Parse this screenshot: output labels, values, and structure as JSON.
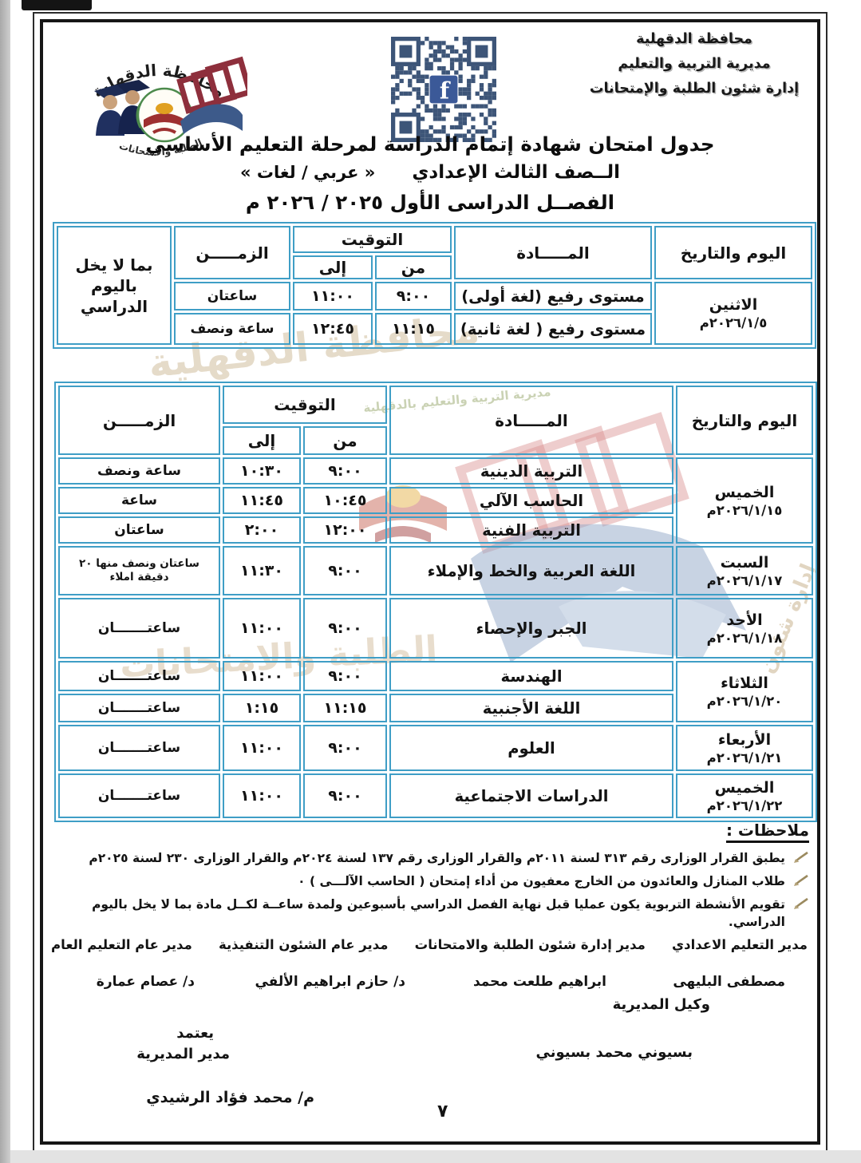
{
  "colors": {
    "table_border": "#3f9ec6",
    "qr_module": "#3d5578",
    "facebook_blue": "#3b5998"
  },
  "gov_header": {
    "line1": "محافظة الدقهلية",
    "line2": "مديرية التربية والتعليم",
    "line3": "إدارة شئون الطلبة والإمتحانات"
  },
  "logo": {
    "arc_top": "محافظة الدقهلية",
    "arc_bottom": "الطلبة والامتحانات",
    "arc_side": "إدارة شئون"
  },
  "titles": {
    "main": "جدول امتحان شهادة إتمام الدراسة لمرحلة التعليم الأساسي",
    "grade": "الــصف الثالث الإعدادي",
    "track": "« عربي / لغات »",
    "term": "الفصــل الدراسى الأول ٢٠٢٥ / ٢٠٢٦ م"
  },
  "headers": {
    "day": "اليوم والتاريخ",
    "subject": "المـــــادة",
    "timing": "التوقيت",
    "from": "من",
    "to": "إلى",
    "duration": "الزمـــــن",
    "side_note_line1": "بما لا يخل",
    "side_note_line2": "باليوم الدراسي"
  },
  "table1": {
    "day": {
      "name": "الاثنين",
      "date": "٢٠٢٦/١/٥م"
    },
    "rows": [
      {
        "subject": "مستوى رفيع (لغة أولى)",
        "from": "٩:٠٠",
        "to": "١١:٠٠",
        "duration": "ساعتان"
      },
      {
        "subject": "مستوى رفيع ( لغة ثانية)",
        "from": "١١:١٥",
        "to": "١٢:٤٥",
        "duration": "ساعة ونصف"
      }
    ]
  },
  "table2": {
    "groups": [
      {
        "day": "الخميس",
        "date": "٢٠٢٦/١/١٥م",
        "rows": [
          {
            "subject": "التربية الدينية",
            "from": "٩:٠٠",
            "to": "١٠:٣٠",
            "duration": "ساعة ونصف"
          },
          {
            "subject": "الحاسب الآلي",
            "from": "١٠:٤٥",
            "to": "١١:٤٥",
            "duration": "ساعة"
          },
          {
            "subject": "التربية الفنية",
            "from": "١٢:٠٠",
            "to": "٢:٠٠",
            "duration": "ساعتان"
          }
        ]
      },
      {
        "day": "السبت",
        "date": "٢٠٢٦/١/١٧م",
        "rows": [
          {
            "subject": "اللغة العربية والخط والإملاء",
            "from": "٩:٠٠",
            "to": "١١:٣٠",
            "duration": "ساعتان ونصف منها ٢٠ دقيقة املاء"
          }
        ]
      },
      {
        "day": "الأحد",
        "date": "٢٠٢٦/١/١٨م",
        "rows": [
          {
            "subject": "الجبر والإحصاء",
            "from": "٩:٠٠",
            "to": "١١:٠٠",
            "duration": "ساعتـــــــان"
          }
        ]
      },
      {
        "day": "الثلاثاء",
        "date": "٢٠٢٦/١/٢٠م",
        "rows": [
          {
            "subject": "الهندسة",
            "from": "٩:٠٠",
            "to": "١١:٠٠",
            "duration": "ساعتـــــــان"
          },
          {
            "subject": "اللغة الأجنبية",
            "from": "١١:١٥",
            "to": "١:١٥",
            "duration": "ساعتـــــــان"
          }
        ]
      },
      {
        "day": "الأربعاء",
        "date": "٢٠٢٦/١/٢١م",
        "rows": [
          {
            "subject": "العلوم",
            "from": "٩:٠٠",
            "to": "١١:٠٠",
            "duration": "ساعتـــــــان"
          }
        ]
      },
      {
        "day": "الخميس",
        "date": "٢٠٢٦/١/٢٢م",
        "rows": [
          {
            "subject": "الدراسات الاجتماعية",
            "from": "٩:٠٠",
            "to": "١١:٠٠",
            "duration": "ساعتـــــــان"
          }
        ]
      }
    ]
  },
  "notes": {
    "title": "ملاحظات :",
    "items": [
      "يطبق القرار الوزارى  رقم ٣١٣ لسنة ٢٠١١م  والقرار الوزارى رقم ١٣٧ لسنة ٢٠٢٤م والقرار الوزارى ٢٣٠ لسنة ٢٠٢٥م",
      "طلاب المنازل والعائدون من الخارج معفيون من أداء إمتحان ( الحاسب الآلـــى ) ٠",
      "تقويم الأنشطة التربوية يكون عمليا قبل نهاية الفصل الدراسي بأسبوعين  ولمدة ساعــة لكــل مادة بما لا يخل باليوم الدراسي."
    ]
  },
  "signatures": {
    "titles": [
      "مدير التعليم الاعدادي",
      "مدير إدارة شئون الطلبة والامتحانات",
      "مدير عام الشئون التنفيذية",
      "مدير عام التعليم العام"
    ],
    "names": [
      "مصطفى البليهى",
      "ابراهيم طلعت محمد",
      "د/ حازم ابراهيم الألفي",
      "د/ عصام عمارة"
    ],
    "deputy_title": "وكيل المديرية",
    "approve": "يعتمد",
    "director_title": "مدير المديرية",
    "director_name": "بسيوني محمد بسيوني",
    "engineer_name": "م/ محمد فؤاد الرشيدي"
  },
  "footer": {
    "page_number": "٧"
  },
  "watermark": {
    "script": "محافظة الدقهلية",
    "small": "مديرية التربية والتعليم بالدقهلية",
    "bigtan": "الطلبة والامتحانات",
    "side": "إدارة شئون"
  }
}
